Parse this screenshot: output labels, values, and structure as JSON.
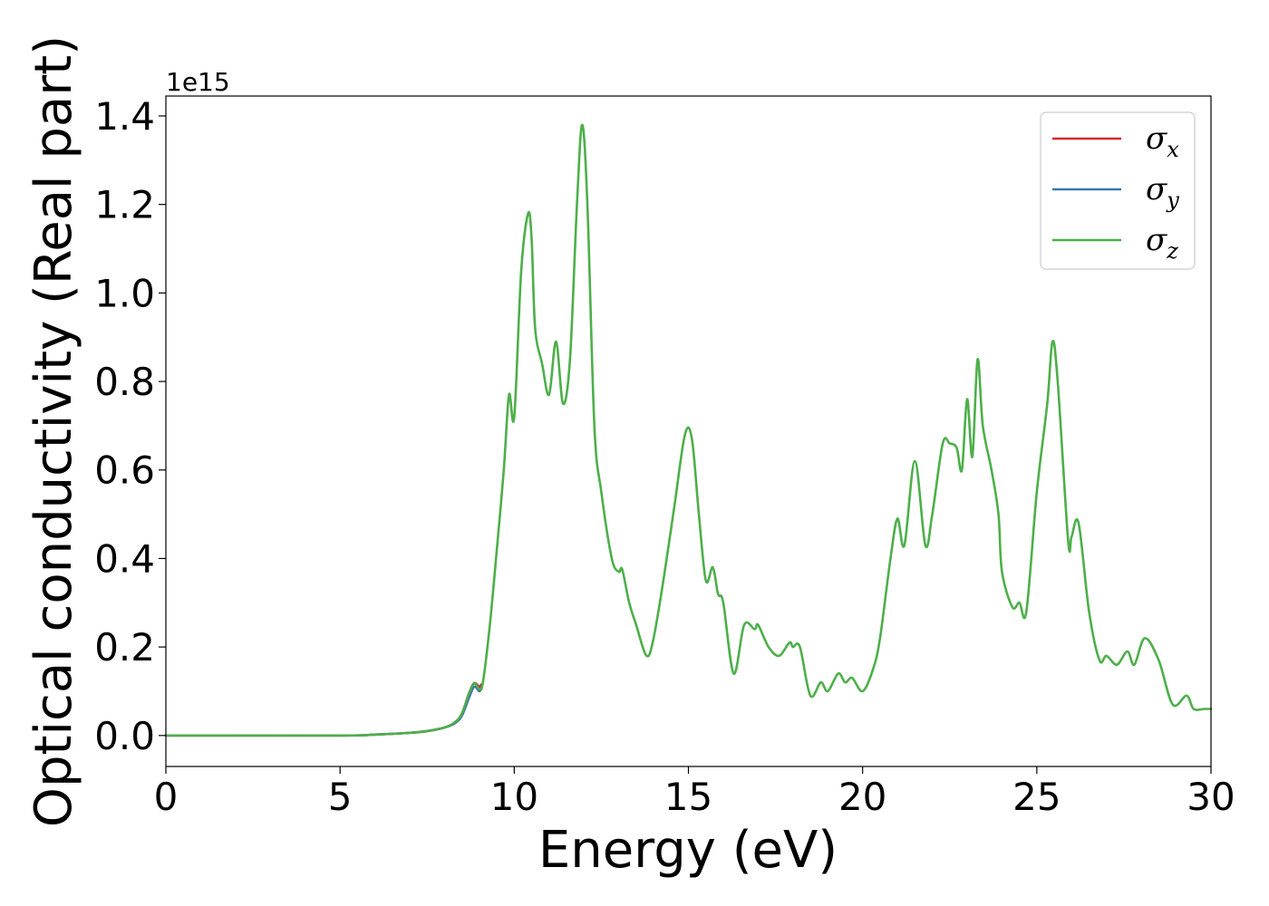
{
  "chart_data": {
    "type": "line",
    "title": "",
    "xlabel": "Energy (eV)",
    "ylabel": "Optical conductivity (Real part)",
    "y_offset_label": "1e15",
    "xlim": [
      0,
      30
    ],
    "ylim": [
      -0.07,
      1.445
    ],
    "x_ticks": [
      {
        "value": 0,
        "label": "0"
      },
      {
        "value": 5,
        "label": "5"
      },
      {
        "value": 10,
        "label": "10"
      },
      {
        "value": 15,
        "label": "15"
      },
      {
        "value": 20,
        "label": "20"
      },
      {
        "value": 25,
        "label": "25"
      },
      {
        "value": 30,
        "label": "30"
      }
    ],
    "y_ticks": [
      {
        "value": 0.0,
        "label": "0.0"
      },
      {
        "value": 0.2,
        "label": "0.2"
      },
      {
        "value": 0.4,
        "label": "0.4"
      },
      {
        "value": 0.6,
        "label": "0.6"
      },
      {
        "value": 0.8,
        "label": "0.8"
      },
      {
        "value": 1.0,
        "label": "1.0"
      },
      {
        "value": 1.2,
        "label": "1.2"
      },
      {
        "value": 1.4,
        "label": "1.4"
      }
    ],
    "grid": false,
    "legend_position": "top-right",
    "series": [
      {
        "name_base": "σ",
        "name_sub": "x",
        "color": "#d62728",
        "x": [
          0,
          5,
          6,
          7,
          7.5,
          8,
          8.3,
          8.5,
          8.7,
          8.85,
          9.0,
          9.05
        ],
        "y": [
          0,
          0,
          0.002,
          0.006,
          0.01,
          0.018,
          0.03,
          0.05,
          0.095,
          0.118,
          0.11,
          0.115
        ]
      },
      {
        "name_base": "σ",
        "name_sub": "y",
        "color": "#3b75af",
        "x": [
          0,
          5,
          6,
          7,
          7.5,
          8,
          8.3,
          8.5,
          8.7,
          8.85,
          9.0,
          9.05
        ],
        "y": [
          0,
          0,
          0.002,
          0.006,
          0.01,
          0.018,
          0.028,
          0.045,
          0.085,
          0.11,
          0.1,
          0.108
        ]
      },
      {
        "name_base": "σ",
        "name_sub": "z",
        "color": "#4daf4a",
        "x": [
          0,
          5,
          6,
          7,
          7.5,
          8,
          8.3,
          8.5,
          8.7,
          8.85,
          9.0,
          9.1,
          9.3,
          9.5,
          9.7,
          9.85,
          10.0,
          10.2,
          10.4,
          10.5,
          10.6,
          10.8,
          11.0,
          11.2,
          11.4,
          11.6,
          11.8,
          11.95,
          12.1,
          12.3,
          12.5,
          12.8,
          13.0,
          13.1,
          13.3,
          13.5,
          13.8,
          14.0,
          14.3,
          14.6,
          14.9,
          15.1,
          15.3,
          15.5,
          15.7,
          15.85,
          16.0,
          16.3,
          16.6,
          16.9,
          17.0,
          17.3,
          17.6,
          17.9,
          18.0,
          18.2,
          18.5,
          18.8,
          19.0,
          19.3,
          19.5,
          19.7,
          20.0,
          20.3,
          20.5,
          20.8,
          21.0,
          21.2,
          21.5,
          21.8,
          22.0,
          22.3,
          22.5,
          22.7,
          22.85,
          23.0,
          23.15,
          23.3,
          23.45,
          23.7,
          23.9,
          24.0,
          24.3,
          24.5,
          24.7,
          25.0,
          25.3,
          25.45,
          25.6,
          25.9,
          26.0,
          26.2,
          26.5,
          26.8,
          27.0,
          27.3,
          27.6,
          27.8,
          28.1,
          28.5,
          28.9,
          29.3,
          29.5,
          29.8,
          30.0
        ],
        "y": [
          0,
          0,
          0.002,
          0.006,
          0.01,
          0.018,
          0.03,
          0.05,
          0.095,
          0.118,
          0.105,
          0.12,
          0.25,
          0.42,
          0.6,
          0.77,
          0.72,
          1.05,
          1.18,
          1.12,
          0.92,
          0.84,
          0.77,
          0.89,
          0.75,
          0.85,
          1.2,
          1.38,
          1.2,
          0.7,
          0.55,
          0.4,
          0.37,
          0.375,
          0.3,
          0.25,
          0.18,
          0.22,
          0.36,
          0.52,
          0.68,
          0.67,
          0.5,
          0.35,
          0.38,
          0.32,
          0.3,
          0.14,
          0.25,
          0.24,
          0.25,
          0.2,
          0.18,
          0.21,
          0.2,
          0.2,
          0.09,
          0.12,
          0.1,
          0.14,
          0.12,
          0.13,
          0.1,
          0.15,
          0.22,
          0.4,
          0.49,
          0.43,
          0.62,
          0.43,
          0.5,
          0.66,
          0.66,
          0.65,
          0.6,
          0.76,
          0.63,
          0.85,
          0.7,
          0.6,
          0.5,
          0.37,
          0.29,
          0.3,
          0.28,
          0.55,
          0.75,
          0.89,
          0.8,
          0.44,
          0.45,
          0.48,
          0.28,
          0.17,
          0.18,
          0.16,
          0.19,
          0.16,
          0.22,
          0.17,
          0.07,
          0.09,
          0.06,
          0.06,
          0.06
        ]
      }
    ]
  }
}
